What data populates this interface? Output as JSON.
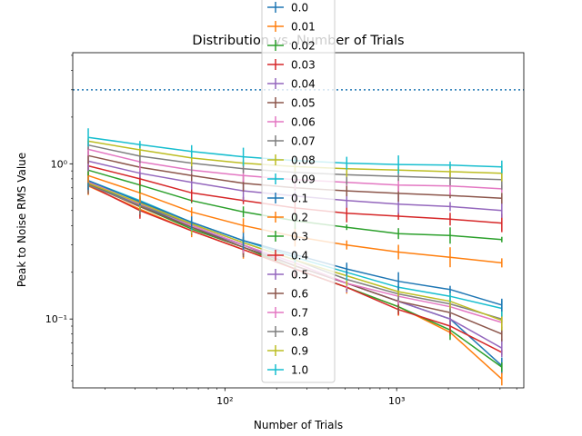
{
  "chart_data": {
    "type": "line",
    "title": "Distribution vs. Number of Trials",
    "xlabel": "Number of Trials",
    "ylabel": "Peak to Noise RMS Value",
    "xscale": "log",
    "yscale": "log",
    "xlim": [
      13,
      5500
    ],
    "ylim": [
      0.036,
      5.2
    ],
    "x_ticks": [
      {
        "value": 100,
        "label": "10²"
      },
      {
        "value": 1000,
        "label": "10³"
      }
    ],
    "y_ticks": [
      {
        "value": 0.1,
        "label": "10⁻¹"
      },
      {
        "value": 1,
        "label": "10⁰"
      }
    ],
    "grid": false,
    "legend_position": "top-center",
    "reference_line": {
      "y": 3.0,
      "style": "dotted",
      "color": "#1f77b4"
    },
    "x": [
      16,
      32,
      64,
      128,
      256,
      512,
      1024,
      2048,
      4096
    ],
    "series": [
      {
        "name": "0.0",
        "color": "#1f77b4",
        "values": [
          0.75,
          0.54,
          0.39,
          0.3,
          0.22,
          0.17,
          0.13,
          0.1,
          0.05
        ]
      },
      {
        "name": "0.01",
        "color": "#ff7f0e",
        "values": [
          0.72,
          0.51,
          0.37,
          0.28,
          0.21,
          0.16,
          0.12,
          0.082,
          0.041
        ]
      },
      {
        "name": "0.02",
        "color": "#2ca02c",
        "values": [
          0.74,
          0.53,
          0.38,
          0.29,
          0.21,
          0.16,
          0.12,
          0.085,
          0.049
        ]
      },
      {
        "name": "0.03",
        "color": "#d62728",
        "values": [
          0.73,
          0.5,
          0.37,
          0.28,
          0.21,
          0.16,
          0.115,
          0.09,
          0.061
        ]
      },
      {
        "name": "0.04",
        "color": "#9467bd",
        "values": [
          0.76,
          0.55,
          0.4,
          0.3,
          0.22,
          0.17,
          0.13,
          0.1,
          0.065
        ]
      },
      {
        "name": "0.05",
        "color": "#8c564b",
        "values": [
          0.74,
          0.53,
          0.39,
          0.29,
          0.22,
          0.17,
          0.13,
          0.11,
          0.08
        ]
      },
      {
        "name": "0.06",
        "color": "#e377c2",
        "values": [
          0.77,
          0.55,
          0.4,
          0.3,
          0.23,
          0.17,
          0.14,
          0.12,
          0.095
        ]
      },
      {
        "name": "0.07",
        "color": "#7f7f7f",
        "values": [
          0.73,
          0.54,
          0.41,
          0.31,
          0.24,
          0.18,
          0.145,
          0.125,
          0.1
        ]
      },
      {
        "name": "0.08",
        "color": "#bcbd22",
        "values": [
          0.75,
          0.56,
          0.41,
          0.31,
          0.24,
          0.19,
          0.15,
          0.13,
          0.098
        ]
      },
      {
        "name": "0.09",
        "color": "#17becf",
        "values": [
          0.78,
          0.58,
          0.42,
          0.32,
          0.25,
          0.2,
          0.16,
          0.14,
          0.117
        ]
      },
      {
        "name": "0.1",
        "color": "#1f77b4",
        "values": [
          0.78,
          0.57,
          0.42,
          0.32,
          0.26,
          0.21,
          0.175,
          0.155,
          0.123
        ]
      },
      {
        "name": "0.2",
        "color": "#ff7f0e",
        "values": [
          0.84,
          0.65,
          0.49,
          0.4,
          0.34,
          0.3,
          0.27,
          0.25,
          0.23
        ]
      },
      {
        "name": "0.3",
        "color": "#2ca02c",
        "values": [
          0.91,
          0.73,
          0.58,
          0.49,
          0.43,
          0.39,
          0.355,
          0.345,
          0.325
        ]
      },
      {
        "name": "0.4",
        "color": "#d62728",
        "values": [
          0.97,
          0.8,
          0.65,
          0.58,
          0.52,
          0.48,
          0.46,
          0.44,
          0.415
        ]
      },
      {
        "name": "0.5",
        "color": "#9467bd",
        "values": [
          1.04,
          0.87,
          0.76,
          0.67,
          0.62,
          0.58,
          0.55,
          0.53,
          0.5
        ]
      },
      {
        "name": "0.6",
        "color": "#8c564b",
        "values": [
          1.13,
          0.95,
          0.84,
          0.75,
          0.7,
          0.67,
          0.645,
          0.625,
          0.6
        ]
      },
      {
        "name": "0.7",
        "color": "#e377c2",
        "values": [
          1.24,
          1.03,
          0.91,
          0.84,
          0.79,
          0.76,
          0.73,
          0.72,
          0.69
        ]
      },
      {
        "name": "0.8",
        "color": "#7f7f7f",
        "values": [
          1.32,
          1.12,
          1.01,
          0.93,
          0.88,
          0.85,
          0.83,
          0.81,
          0.79
        ]
      },
      {
        "name": "0.9",
        "color": "#bcbd22",
        "values": [
          1.4,
          1.23,
          1.09,
          1.01,
          0.96,
          0.93,
          0.91,
          0.89,
          0.87
        ]
      },
      {
        "name": "1.0",
        "color": "#17becf",
        "values": [
          1.48,
          1.33,
          1.2,
          1.11,
          1.05,
          1.01,
          0.99,
          0.98,
          0.955
        ]
      }
    ]
  }
}
